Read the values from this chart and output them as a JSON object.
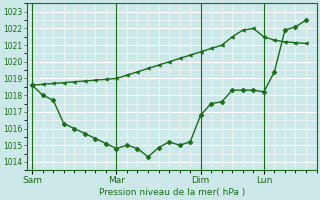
{
  "bg_color": "#cce8e8",
  "grid_color": "#ffffff",
  "line_color": "#1a6b1a",
  "x_tick_labels": [
    "Sam",
    "Mar",
    "Dim",
    "Lun"
  ],
  "x_tick_positions": [
    0,
    8,
    16,
    22
  ],
  "x_vlines": [
    0,
    8,
    16,
    22
  ],
  "xlabel": "Pression niveau de la mer( hPa )",
  "ylim": [
    1013.5,
    1023.5
  ],
  "yticks": [
    1014,
    1015,
    1016,
    1017,
    1018,
    1019,
    1020,
    1021,
    1022,
    1023
  ],
  "xlim": [
    -0.5,
    27
  ],
  "line1_x": [
    0,
    1,
    2,
    3,
    4,
    5,
    6,
    7,
    8,
    9,
    10,
    11,
    12,
    13,
    14,
    15,
    16,
    17,
    18,
    19,
    20,
    21,
    22,
    23,
    24,
    25,
    26
  ],
  "line1_y": [
    1018.6,
    1018.65,
    1018.7,
    1018.75,
    1018.8,
    1018.85,
    1018.9,
    1018.95,
    1019.0,
    1019.2,
    1019.4,
    1019.6,
    1019.8,
    1020.0,
    1020.2,
    1020.4,
    1020.6,
    1020.8,
    1021.0,
    1021.5,
    1021.9,
    1022.0,
    1021.5,
    1021.3,
    1021.2,
    1021.15,
    1021.1
  ],
  "line2_x": [
    0,
    1,
    2,
    3,
    4,
    5,
    6,
    7,
    8,
    9,
    10,
    11,
    12,
    13,
    14,
    15,
    16,
    17,
    18,
    19,
    20,
    21,
    22,
    23,
    24,
    25,
    26
  ],
  "line2_y": [
    1018.6,
    1018.0,
    1017.7,
    1016.3,
    1016.0,
    1015.7,
    1015.4,
    1015.1,
    1014.8,
    1015.0,
    1014.8,
    1014.3,
    1014.85,
    1015.2,
    1015.0,
    1015.2,
    1016.8,
    1017.5,
    1017.6,
    1018.3,
    1018.3,
    1018.3,
    1018.2,
    1019.4,
    1021.9,
    1022.1,
    1022.5
  ]
}
